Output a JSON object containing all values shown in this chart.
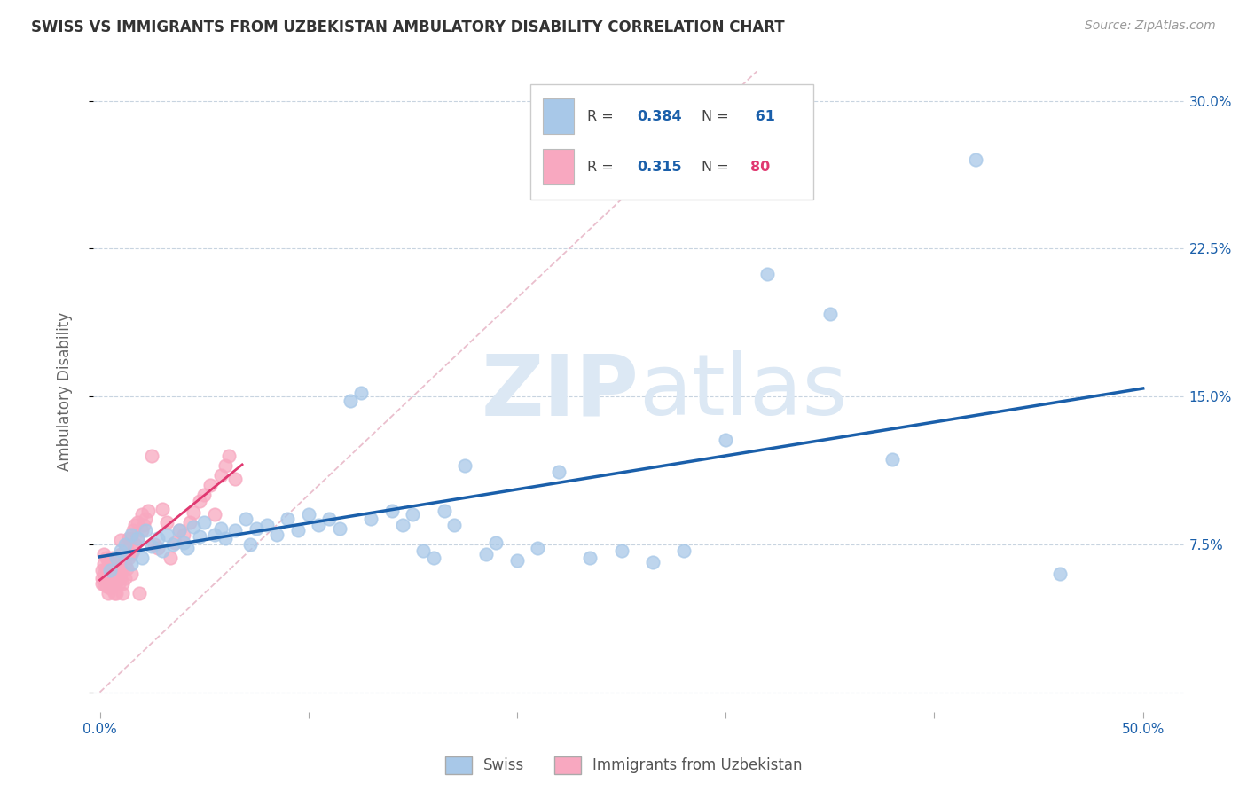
{
  "title": "SWISS VS IMMIGRANTS FROM UZBEKISTAN AMBULATORY DISABILITY CORRELATION CHART",
  "source": "Source: ZipAtlas.com",
  "ylabel": "Ambulatory Disability",
  "xlabel_ticks": [
    "0.0%",
    "",
    "",
    "",
    "",
    "50.0%"
  ],
  "xlabel_tick_vals": [
    0.0,
    0.1,
    0.2,
    0.3,
    0.4,
    0.5
  ],
  "ylabel_ticks": [
    "",
    "7.5%",
    "15.0%",
    "22.5%",
    "30.0%"
  ],
  "ylabel_tick_vals": [
    0.0,
    0.075,
    0.15,
    0.225,
    0.3
  ],
  "xlim": [
    -0.003,
    0.52
  ],
  "ylim": [
    -0.01,
    0.315
  ],
  "swiss_color": "#a8c8e8",
  "swiss_line_color": "#1a5faa",
  "immig_color": "#f8a8c0",
  "immig_line_color": "#e03870",
  "diag_dash_color": "#e8b8c8",
  "watermark_color": "#dce8f4",
  "swiss_R": "0.384",
  "swiss_N": "61",
  "immig_R": "0.315",
  "immig_N": "80",
  "swiss_x": [
    0.005,
    0.008,
    0.01,
    0.012,
    0.015,
    0.015,
    0.018,
    0.02,
    0.022,
    0.025,
    0.028,
    0.03,
    0.032,
    0.035,
    0.038,
    0.04,
    0.042,
    0.045,
    0.048,
    0.05,
    0.055,
    0.058,
    0.06,
    0.065,
    0.07,
    0.072,
    0.075,
    0.08,
    0.085,
    0.09,
    0.095,
    0.1,
    0.105,
    0.11,
    0.115,
    0.12,
    0.125,
    0.13,
    0.14,
    0.145,
    0.15,
    0.155,
    0.16,
    0.165,
    0.17,
    0.175,
    0.185,
    0.19,
    0.2,
    0.21,
    0.22,
    0.235,
    0.25,
    0.265,
    0.28,
    0.3,
    0.32,
    0.35,
    0.38,
    0.42,
    0.46
  ],
  "swiss_y": [
    0.062,
    0.068,
    0.072,
    0.075,
    0.065,
    0.08,
    0.078,
    0.068,
    0.082,
    0.074,
    0.078,
    0.072,
    0.08,
    0.075,
    0.082,
    0.076,
    0.073,
    0.084,
    0.079,
    0.086,
    0.08,
    0.083,
    0.078,
    0.082,
    0.088,
    0.075,
    0.083,
    0.085,
    0.08,
    0.088,
    0.082,
    0.09,
    0.085,
    0.088,
    0.083,
    0.148,
    0.152,
    0.088,
    0.092,
    0.085,
    0.09,
    0.072,
    0.068,
    0.092,
    0.085,
    0.115,
    0.07,
    0.076,
    0.067,
    0.073,
    0.112,
    0.068,
    0.072,
    0.066,
    0.072,
    0.128,
    0.212,
    0.192,
    0.118,
    0.27,
    0.06
  ],
  "immig_x": [
    0.001,
    0.001,
    0.001,
    0.002,
    0.002,
    0.002,
    0.002,
    0.003,
    0.003,
    0.003,
    0.003,
    0.004,
    0.004,
    0.004,
    0.004,
    0.005,
    0.005,
    0.005,
    0.005,
    0.006,
    0.006,
    0.006,
    0.007,
    0.007,
    0.007,
    0.007,
    0.008,
    0.008,
    0.008,
    0.009,
    0.009,
    0.009,
    0.01,
    0.01,
    0.01,
    0.01,
    0.011,
    0.011,
    0.011,
    0.012,
    0.012,
    0.012,
    0.013,
    0.013,
    0.014,
    0.014,
    0.015,
    0.015,
    0.015,
    0.016,
    0.016,
    0.017,
    0.017,
    0.018,
    0.018,
    0.019,
    0.02,
    0.02,
    0.021,
    0.022,
    0.023,
    0.025,
    0.026,
    0.028,
    0.03,
    0.032,
    0.034,
    0.036,
    0.038,
    0.04,
    0.043,
    0.045,
    0.048,
    0.05,
    0.053,
    0.055,
    0.058,
    0.06,
    0.062,
    0.065
  ],
  "immig_y": [
    0.058,
    0.062,
    0.055,
    0.06,
    0.065,
    0.07,
    0.055,
    0.058,
    0.063,
    0.068,
    0.054,
    0.057,
    0.062,
    0.067,
    0.05,
    0.055,
    0.06,
    0.067,
    0.053,
    0.056,
    0.062,
    0.068,
    0.055,
    0.06,
    0.065,
    0.05,
    0.056,
    0.063,
    0.05,
    0.055,
    0.06,
    0.068,
    0.058,
    0.063,
    0.07,
    0.077,
    0.05,
    0.055,
    0.062,
    0.058,
    0.065,
    0.072,
    0.063,
    0.075,
    0.068,
    0.078,
    0.06,
    0.07,
    0.078,
    0.072,
    0.082,
    0.075,
    0.085,
    0.078,
    0.086,
    0.05,
    0.082,
    0.09,
    0.085,
    0.088,
    0.092,
    0.12,
    0.075,
    0.073,
    0.093,
    0.086,
    0.068,
    0.076,
    0.082,
    0.08,
    0.086,
    0.091,
    0.097,
    0.1,
    0.105,
    0.09,
    0.11,
    0.115,
    0.12,
    0.108
  ]
}
